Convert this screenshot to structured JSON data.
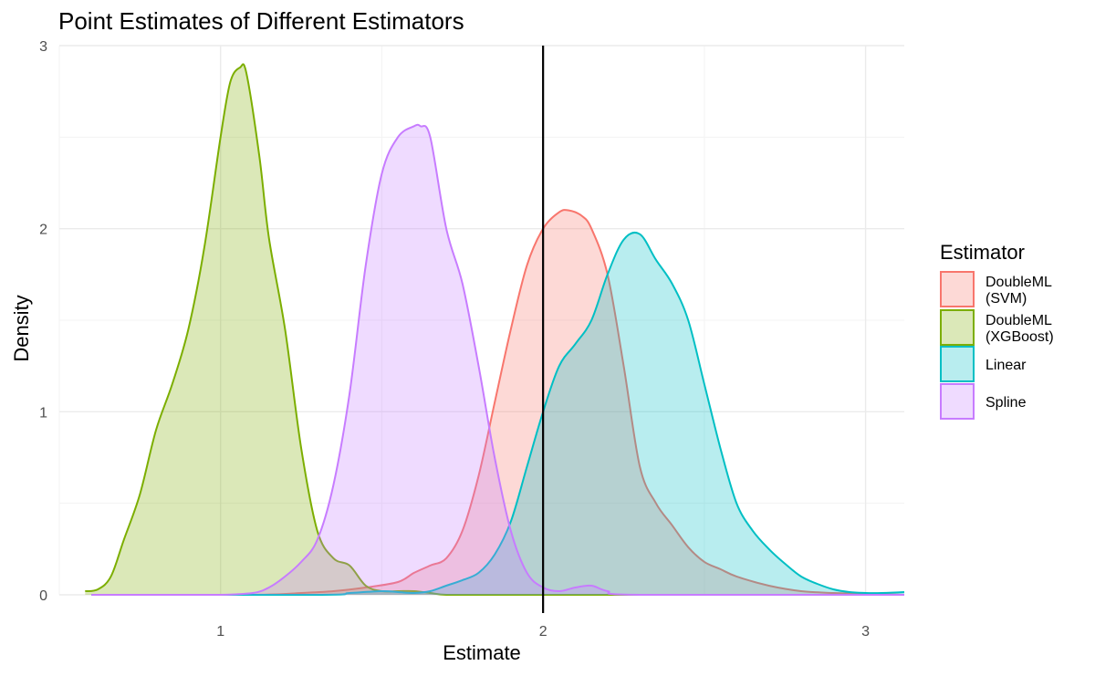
{
  "chart_data": {
    "type": "area",
    "title": "Point Estimates of Different Estimators",
    "xlabel": "Estimate",
    "ylabel": "Density",
    "xlim": [
      0.5,
      3.12
    ],
    "ylim": [
      0,
      3
    ],
    "x_ticks": [
      1,
      2,
      3
    ],
    "y_ticks": [
      0,
      1,
      2,
      3
    ],
    "grid": true,
    "reference_line": {
      "x": 2,
      "color": "#000000"
    },
    "legend": {
      "title": "Estimator",
      "position": "right"
    },
    "series": [
      {
        "name": "DoubleML (SVM)",
        "label_lines": [
          "DoubleML",
          "(SVM)"
        ],
        "color": "#F8766D",
        "x": [
          0.6,
          1.1,
          1.25,
          1.35,
          1.45,
          1.55,
          1.6,
          1.65,
          1.7,
          1.75,
          1.8,
          1.85,
          1.9,
          1.95,
          2.0,
          2.05,
          2.08,
          2.12,
          2.15,
          2.2,
          2.25,
          2.3,
          2.35,
          2.4,
          2.45,
          2.5,
          2.55,
          2.6,
          2.7,
          2.8,
          2.9,
          3.12
        ],
        "y": [
          0,
          0,
          0.01,
          0.02,
          0.04,
          0.07,
          0.12,
          0.16,
          0.2,
          0.35,
          0.65,
          1.05,
          1.45,
          1.8,
          2.0,
          2.09,
          2.1,
          2.07,
          2.0,
          1.75,
          1.25,
          0.7,
          0.5,
          0.38,
          0.26,
          0.18,
          0.14,
          0.1,
          0.05,
          0.02,
          0.01,
          0.0
        ]
      },
      {
        "name": "DoubleML (XGBoost)",
        "label_lines": [
          "DoubleML",
          "(XGBoost)"
        ],
        "color": "#7CAE00",
        "x": [
          0.58,
          0.62,
          0.66,
          0.7,
          0.75,
          0.8,
          0.85,
          0.9,
          0.95,
          1.0,
          1.03,
          1.06,
          1.08,
          1.12,
          1.15,
          1.2,
          1.25,
          1.3,
          1.35,
          1.4,
          1.45,
          1.5,
          1.55,
          1.6,
          1.65,
          1.7,
          1.8,
          2.0,
          2.3
        ],
        "y": [
          0.02,
          0.03,
          0.1,
          0.3,
          0.55,
          0.9,
          1.15,
          1.45,
          1.9,
          2.5,
          2.8,
          2.88,
          2.85,
          2.4,
          1.95,
          1.45,
          0.8,
          0.35,
          0.2,
          0.16,
          0.05,
          0.02,
          0.02,
          0.02,
          0.01,
          0.0,
          0.0,
          0.0,
          0.0
        ]
      },
      {
        "name": "Linear",
        "label_lines": [
          "Linear"
        ],
        "color": "#00BFC4",
        "x": [
          0.6,
          1.3,
          1.4,
          1.5,
          1.55,
          1.6,
          1.65,
          1.7,
          1.75,
          1.8,
          1.85,
          1.9,
          1.95,
          2.0,
          2.05,
          2.1,
          2.15,
          2.2,
          2.25,
          2.3,
          2.35,
          2.4,
          2.45,
          2.5,
          2.55,
          2.6,
          2.65,
          2.7,
          2.75,
          2.8,
          2.85,
          2.9,
          2.95,
          3.0,
          3.05,
          3.12
        ],
        "y": [
          0,
          0,
          0.01,
          0.02,
          0.015,
          0.01,
          0.02,
          0.05,
          0.08,
          0.12,
          0.22,
          0.4,
          0.7,
          1.0,
          1.25,
          1.37,
          1.5,
          1.75,
          1.94,
          1.97,
          1.83,
          1.7,
          1.5,
          1.15,
          0.8,
          0.5,
          0.35,
          0.25,
          0.17,
          0.1,
          0.06,
          0.03,
          0.015,
          0.01,
          0.01,
          0.015
        ]
      },
      {
        "name": "Spline",
        "label_lines": [
          "Spline"
        ],
        "color": "#C77CFF",
        "x": [
          0.6,
          0.9,
          1.0,
          1.1,
          1.15,
          1.2,
          1.25,
          1.3,
          1.35,
          1.4,
          1.45,
          1.5,
          1.55,
          1.6,
          1.62,
          1.65,
          1.7,
          1.75,
          1.8,
          1.85,
          1.9,
          1.95,
          2.0,
          2.05,
          2.1,
          2.15,
          2.2,
          2.3,
          3.12
        ],
        "y": [
          0,
          0,
          0,
          0.01,
          0.04,
          0.1,
          0.18,
          0.3,
          0.6,
          1.1,
          1.8,
          2.3,
          2.5,
          2.56,
          2.56,
          2.5,
          2.0,
          1.7,
          1.25,
          0.75,
          0.35,
          0.12,
          0.04,
          0.02,
          0.04,
          0.05,
          0.02,
          0.0,
          0.0
        ]
      }
    ]
  }
}
